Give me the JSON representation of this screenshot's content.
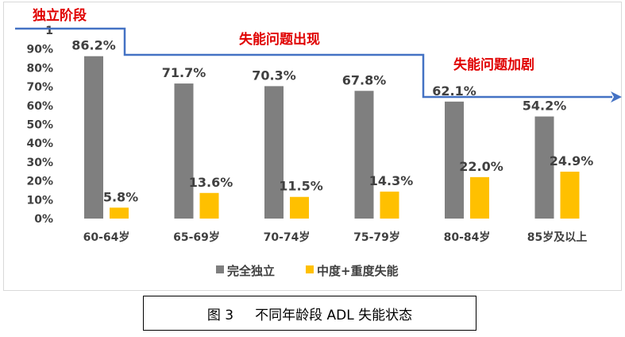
{
  "chart_data": {
    "type": "bar",
    "categories": [
      "60-64岁",
      "65-69岁",
      "70-74岁",
      "75-79岁",
      "80-84岁",
      "85岁及以上"
    ],
    "series": [
      {
        "name": "完全独立",
        "values": [
          86.2,
          71.7,
          70.3,
          67.8,
          62.1,
          54.2
        ],
        "color": "#7f7f7f"
      },
      {
        "name": "中度+重度失能",
        "values": [
          5.8,
          13.6,
          11.5,
          14.3,
          22.0,
          24.9
        ],
        "color": "#ffc000"
      }
    ],
    "data_labels": [
      [
        "86.2%",
        "71.7%",
        "70.3%",
        "67.8%",
        "62.1%",
        "54.2%"
      ],
      [
        "5.8%",
        "13.6%",
        "11.5%",
        "14.3%",
        "22.0%",
        "24.9%"
      ]
    ],
    "y_ticks": [
      "0%",
      "10%",
      "20%",
      "30%",
      "40%",
      "50%",
      "60%",
      "70%",
      "80%",
      "90%",
      "1"
    ],
    "ylim": [
      0,
      100
    ],
    "grid": false,
    "legend": "bottom",
    "stages": [
      "独立阶段",
      "失能问题出现",
      "失能问题加剧"
    ],
    "stage_color": "#e00000",
    "arrow_color": "#4472c4"
  },
  "caption": "图 3     不同年龄段 ADL 失能状态"
}
